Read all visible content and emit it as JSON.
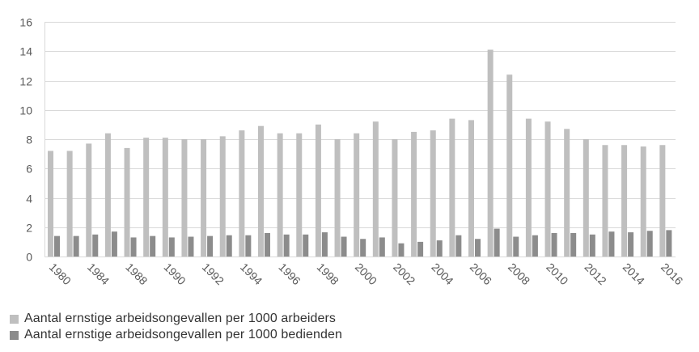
{
  "chart_data": {
    "type": "bar",
    "categories": [
      "1980",
      "",
      "1984",
      "",
      "1988",
      "",
      "1990",
      "",
      "1992",
      "",
      "1994",
      "",
      "1996",
      "",
      "1998",
      "",
      "2000",
      "",
      "2002",
      "",
      "2004",
      "",
      "2006",
      "",
      "2008",
      "",
      "2010",
      "",
      "2012",
      "",
      "2014",
      "",
      "2016"
    ],
    "series": [
      {
        "name": "Aantal ernstige arbeidsongevallen per 1000 arbeiders",
        "color": "#bfbfbf",
        "values": [
          7.2,
          7.2,
          7.7,
          8.4,
          7.4,
          8.1,
          8.1,
          8.0,
          8.0,
          8.2,
          8.6,
          8.9,
          8.4,
          8.4,
          9.0,
          8.0,
          8.4,
          9.2,
          8.0,
          8.5,
          8.6,
          9.4,
          9.3,
          14.1,
          12.4,
          9.4,
          9.2,
          8.7,
          8.0,
          7.6,
          7.6,
          7.5,
          7.6
        ]
      },
      {
        "name": "Aantal ernstige arbeidsongevallen per 1000 bedienden",
        "color": "#8c8c8c",
        "values": [
          1.4,
          1.4,
          1.5,
          1.7,
          1.3,
          1.4,
          1.3,
          1.35,
          1.4,
          1.45,
          1.45,
          1.6,
          1.5,
          1.5,
          1.65,
          1.35,
          1.2,
          1.3,
          0.9,
          1.0,
          1.1,
          1.45,
          1.2,
          1.9,
          1.35,
          1.45,
          1.6,
          1.6,
          1.5,
          1.7,
          1.65,
          1.75,
          1.8
        ]
      }
    ],
    "title": "",
    "xlabel": "",
    "ylabel": "",
    "ylim": [
      0,
      16
    ],
    "yticks": [
      0,
      2,
      4,
      6,
      8,
      10,
      12,
      14,
      16
    ],
    "grid": true,
    "gridline_color": "#d9d9d9",
    "legend_position": "bottom-left"
  }
}
